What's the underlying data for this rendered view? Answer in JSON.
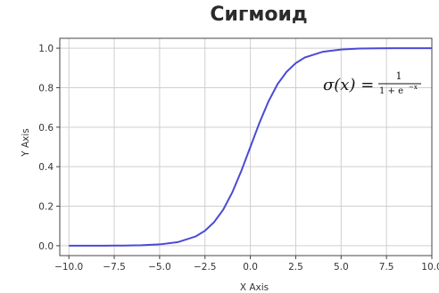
{
  "chart_data": {
    "type": "line",
    "title": "Сигмоид",
    "xlabel": "X Axis",
    "ylabel": "Y Axis",
    "xlim": [
      -10.5,
      10.0
    ],
    "ylim": [
      -0.05,
      1.05
    ],
    "xticks": [
      "−10.0",
      "−7.5",
      "−5.0",
      "−2.5",
      "0.0",
      "2.5",
      "5.0",
      "7.5",
      "10.0"
    ],
    "xtick_values": [
      -10,
      -7.5,
      -5,
      -2.5,
      0,
      2.5,
      5,
      7.5,
      10
    ],
    "yticks": [
      "0.0",
      "0.2",
      "0.4",
      "0.6",
      "0.8",
      "1.0"
    ],
    "ytick_values": [
      0,
      0.2,
      0.4,
      0.6,
      0.8,
      1.0
    ],
    "grid": true,
    "series": [
      {
        "color": "#4b49d6",
        "x": [
          -10,
          -9,
          -8,
          -7,
          -6,
          -5,
          -4,
          -3,
          -2.5,
          -2,
          -1.5,
          -1,
          -0.5,
          0,
          0.5,
          1,
          1.5,
          2,
          2.5,
          3,
          4,
          5,
          6,
          7,
          8,
          9,
          10
        ],
        "y": [
          4.54e-05,
          0.000123,
          0.000335,
          0.000911,
          0.00247,
          0.00669,
          0.018,
          0.0474,
          0.0759,
          0.119,
          0.182,
          0.269,
          0.378,
          0.5,
          0.622,
          0.731,
          0.818,
          0.881,
          0.924,
          0.953,
          0.982,
          0.993,
          0.998,
          0.999,
          1.0,
          1.0,
          1.0
        ]
      }
    ],
    "annotation": {
      "lhs": "σ(x) =",
      "numerator": "1",
      "denominator": "1 + e",
      "exponent": "−x"
    }
  }
}
